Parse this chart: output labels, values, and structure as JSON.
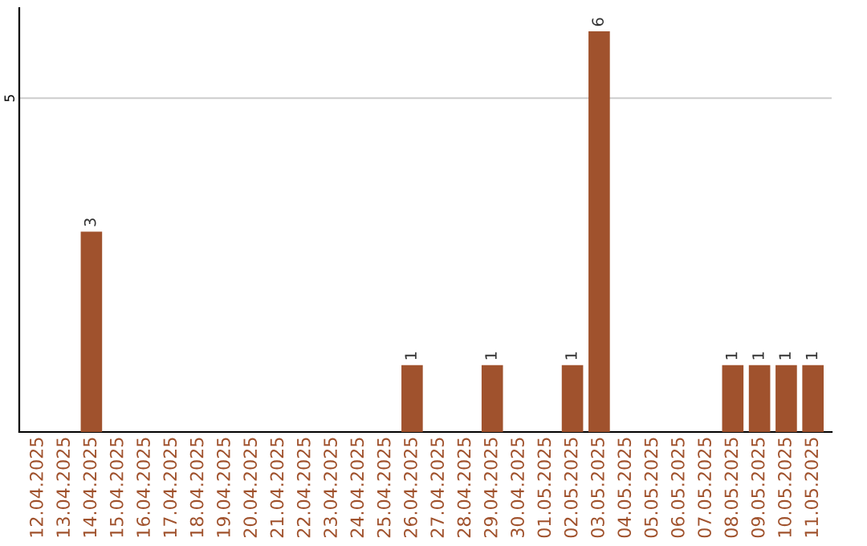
{
  "chart_data": {
    "type": "bar",
    "categories": [
      "12.04.2025",
      "13.04.2025",
      "14.04.2025",
      "15.04.2025",
      "16.04.2025",
      "17.04.2025",
      "18.04.2025",
      "19.04.2025",
      "20.04.2025",
      "21.04.2025",
      "22.04.2025",
      "23.04.2025",
      "24.04.2025",
      "25.04.2025",
      "26.04.2025",
      "27.04.2025",
      "28.04.2025",
      "29.04.2025",
      "30.04.2025",
      "01.05.2025",
      "02.05.2025",
      "03.05.2025",
      "04.05.2025",
      "05.05.2025",
      "06.05.2025",
      "07.05.2025",
      "08.05.2025",
      "09.05.2025",
      "10.05.2025",
      "11.05.2025"
    ],
    "values": [
      0,
      0,
      3,
      0,
      0,
      0,
      0,
      0,
      0,
      0,
      0,
      0,
      0,
      0,
      1,
      0,
      0,
      1,
      0,
      0,
      1,
      6,
      0,
      0,
      0,
      0,
      1,
      1,
      1,
      1
    ],
    "value_labels": [
      null,
      null,
      "3",
      null,
      null,
      null,
      null,
      null,
      null,
      null,
      null,
      null,
      null,
      null,
      "1",
      null,
      null,
      "1",
      null,
      null,
      "1",
      "6",
      null,
      null,
      null,
      null,
      "1",
      "1",
      "1",
      "1"
    ],
    "color": "#a0522d",
    "ylim": [
      0,
      6.35
    ],
    "yticks": [
      5
    ],
    "grid": "y"
  }
}
